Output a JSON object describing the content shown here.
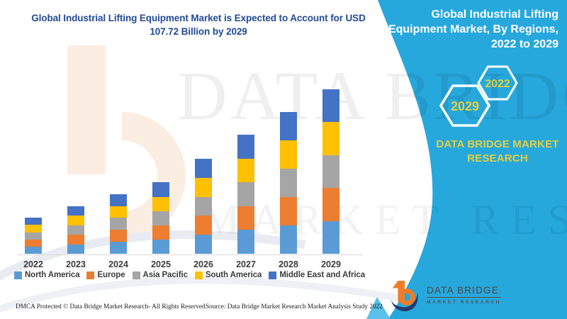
{
  "title": {
    "line1": "Global Industrial Lifting Equipment Market is Expected to Account for USD",
    "line2": "107.72 Billion by 2029"
  },
  "side_panel": {
    "accent_color": "#27A8DD",
    "title_lines": [
      "Global Industrial Lifting",
      "Equipment Market, By Regions,",
      "2022 to 2029"
    ],
    "hexagons": [
      "2029",
      "2022"
    ],
    "hexagon_text_color": "#E2CF3C",
    "brand_lines": [
      "DATA BRIDGE MARKET",
      "RESEARCH"
    ]
  },
  "logo": {
    "name": "DATA BRIDGE",
    "subtitle": "MARKET RESEARCH"
  },
  "watermark": {
    "brand_line1": "DATA BRIDGE",
    "brand_line2": "MARKET RESEARCH"
  },
  "footer": {
    "dmca": "DMCA Protected © Data Bridge Market Research- All Rights Reserved.",
    "source": "Source: Data Bridge Market Research Market Analysis Study 2022"
  },
  "chart_data": {
    "type": "bar",
    "stacked": true,
    "title": "Global Industrial Lifting Equipment Market is Expected to Account for USD 107.72 Billion by 2029",
    "unit": "USD Billion",
    "categories": [
      "2022",
      "2023",
      "2024",
      "2025",
      "2026",
      "2027",
      "2028",
      "2029"
    ],
    "series": [
      {
        "name": "North America",
        "color": "#5B9BD5",
        "values": [
          4.7,
          6.2,
          7.8,
          9.3,
          12.4,
          15.5,
          18.5,
          21.5
        ]
      },
      {
        "name": "Europe",
        "color": "#ED7D31",
        "values": [
          4.7,
          6.2,
          7.8,
          9.3,
          12.4,
          15.5,
          18.5,
          21.5
        ]
      },
      {
        "name": "Asia Pacific",
        "color": "#A5A5A5",
        "values": [
          4.7,
          6.2,
          7.8,
          9.3,
          12.4,
          15.5,
          18.5,
          21.5
        ]
      },
      {
        "name": "South America",
        "color": "#FFC000",
        "values": [
          4.7,
          6.2,
          7.8,
          9.3,
          12.4,
          15.5,
          18.5,
          21.5
        ]
      },
      {
        "name": "Middle East and Africa",
        "color": "#4472C4",
        "values": [
          4.7,
          6.2,
          7.8,
          9.3,
          12.4,
          15.5,
          18.5,
          21.5
        ]
      }
    ],
    "totals_estimated": [
      23.6,
      31.1,
      38.8,
      46.6,
      61.9,
      77.7,
      92.5,
      107.72
    ],
    "xlabel": "",
    "ylabel": "",
    "ylim": [
      0,
      110
    ],
    "gridlines": false,
    "y_axis_visible": false,
    "legend_position": "bottom",
    "note_visible_value": "2029 total of USD 107.72 Billion stated in title; other values estimated from bar heights with equal regional split"
  }
}
